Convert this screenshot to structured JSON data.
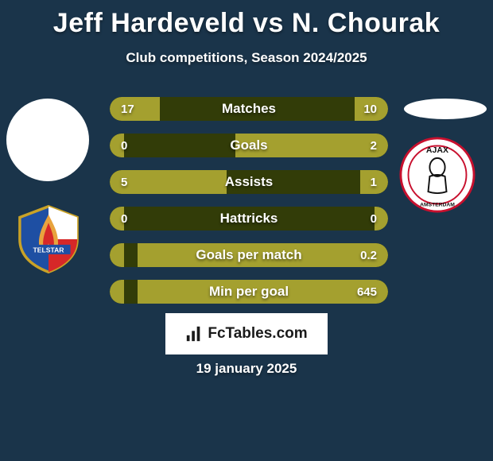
{
  "colors": {
    "page_bg": "#1a344a",
    "bar_bg": "#323c08",
    "bar_fill": "#a4a02f",
    "text": "#ffffff"
  },
  "header": {
    "title": "Jeff Hardeveld vs N. Chourak",
    "subtitle": "Club competitions, Season 2024/2025"
  },
  "stats": [
    {
      "label": "Matches",
      "left_val": "17",
      "right_val": "10",
      "left_pct": 18,
      "right_pct": 12
    },
    {
      "label": "Goals",
      "left_val": "0",
      "right_val": "2",
      "left_pct": 5,
      "right_pct": 55
    },
    {
      "label": "Assists",
      "left_val": "5",
      "right_val": "1",
      "left_pct": 42,
      "right_pct": 10
    },
    {
      "label": "Hattricks",
      "left_val": "0",
      "right_val": "0",
      "left_pct": 5,
      "right_pct": 5
    },
    {
      "label": "Goals per match",
      "left_val": "",
      "right_val": "0.2",
      "left_pct": 5,
      "right_pct": 90
    },
    {
      "label": "Min per goal",
      "left_val": "",
      "right_val": "645",
      "left_pct": 5,
      "right_pct": 90
    }
  ],
  "footer": {
    "brand": "FcTables.com",
    "date": "19 january 2025"
  },
  "badges": {
    "left_club": "telstar",
    "right_club": "ajax"
  }
}
